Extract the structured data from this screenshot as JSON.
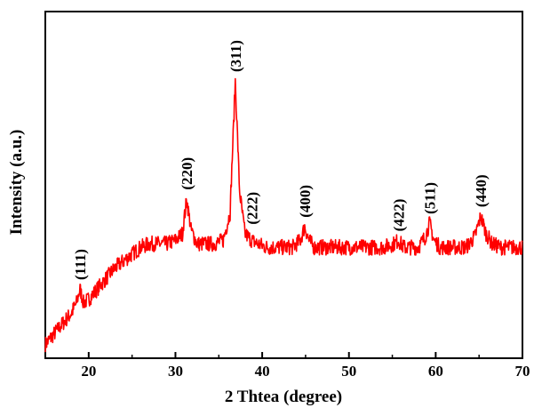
{
  "chart_data": {
    "type": "line",
    "title": "",
    "xlabel": "2 Thtea (degree)",
    "ylabel": "Intensity (a.u.)",
    "xlim": [
      15,
      70
    ],
    "ylim": [
      0,
      1
    ],
    "y_ticks_shown": false,
    "grid": false,
    "legend": "none",
    "x_ticks": [
      {
        "value": 20,
        "label": "20"
      },
      {
        "value": 30,
        "label": "30"
      },
      {
        "value": 40,
        "label": "40"
      },
      {
        "value": 50,
        "label": "50"
      },
      {
        "value": 60,
        "label": "60"
      },
      {
        "value": 70,
        "label": "70"
      }
    ],
    "series": [
      {
        "color": "#ff0000",
        "points": [
          [
            15.0,
            0.04
          ],
          [
            16.0,
            0.07
          ],
          [
            17.0,
            0.1
          ],
          [
            18.0,
            0.13
          ],
          [
            18.6,
            0.16
          ],
          [
            19.0,
            0.2
          ],
          [
            19.4,
            0.16
          ],
          [
            20.0,
            0.17
          ],
          [
            21.0,
            0.2
          ],
          [
            22.0,
            0.23
          ],
          [
            23.0,
            0.26
          ],
          [
            24.0,
            0.28
          ],
          [
            25.0,
            0.3
          ],
          [
            26.0,
            0.32
          ],
          [
            27.0,
            0.33
          ],
          [
            28.0,
            0.33
          ],
          [
            29.0,
            0.33
          ],
          [
            30.0,
            0.34
          ],
          [
            30.8,
            0.36
          ],
          [
            31.3,
            0.46
          ],
          [
            31.8,
            0.37
          ],
          [
            32.5,
            0.33
          ],
          [
            33.5,
            0.33
          ],
          [
            34.5,
            0.33
          ],
          [
            35.5,
            0.34
          ],
          [
            36.3,
            0.42
          ],
          [
            36.9,
            0.8
          ],
          [
            37.4,
            0.48
          ],
          [
            38.0,
            0.36
          ],
          [
            38.8,
            0.34
          ],
          [
            39.5,
            0.33
          ],
          [
            40.5,
            0.32
          ],
          [
            41.5,
            0.32
          ],
          [
            42.5,
            0.32
          ],
          [
            43.5,
            0.32
          ],
          [
            44.4,
            0.34
          ],
          [
            44.9,
            0.38
          ],
          [
            45.4,
            0.34
          ],
          [
            46.0,
            0.32
          ],
          [
            47.0,
            0.32
          ],
          [
            48.0,
            0.32
          ],
          [
            49.0,
            0.32
          ],
          [
            50.0,
            0.32
          ],
          [
            51.0,
            0.32
          ],
          [
            52.0,
            0.32
          ],
          [
            53.0,
            0.32
          ],
          [
            54.0,
            0.32
          ],
          [
            55.2,
            0.33
          ],
          [
            55.7,
            0.34
          ],
          [
            56.3,
            0.32
          ],
          [
            57.0,
            0.32
          ],
          [
            58.0,
            0.32
          ],
          [
            58.8,
            0.35
          ],
          [
            59.3,
            0.39
          ],
          [
            59.8,
            0.34
          ],
          [
            60.5,
            0.32
          ],
          [
            61.5,
            0.32
          ],
          [
            62.5,
            0.32
          ],
          [
            63.5,
            0.32
          ],
          [
            64.5,
            0.35
          ],
          [
            65.2,
            0.41
          ],
          [
            65.8,
            0.36
          ],
          [
            66.5,
            0.33
          ],
          [
            67.5,
            0.32
          ],
          [
            68.5,
            0.32
          ],
          [
            69.5,
            0.32
          ],
          [
            70.0,
            0.32
          ]
        ]
      }
    ],
    "annotations": [
      {
        "text": "(111)",
        "x": 19.0
      },
      {
        "text": "(220)",
        "x": 31.3
      },
      {
        "text": "(311)",
        "x": 36.9
      },
      {
        "text": "(222)",
        "x": 38.8
      },
      {
        "text": "(400)",
        "x": 44.9
      },
      {
        "text": "(422)",
        "x": 55.7
      },
      {
        "text": "(511)",
        "x": 59.3
      },
      {
        "text": "(440)",
        "x": 65.2
      }
    ]
  }
}
